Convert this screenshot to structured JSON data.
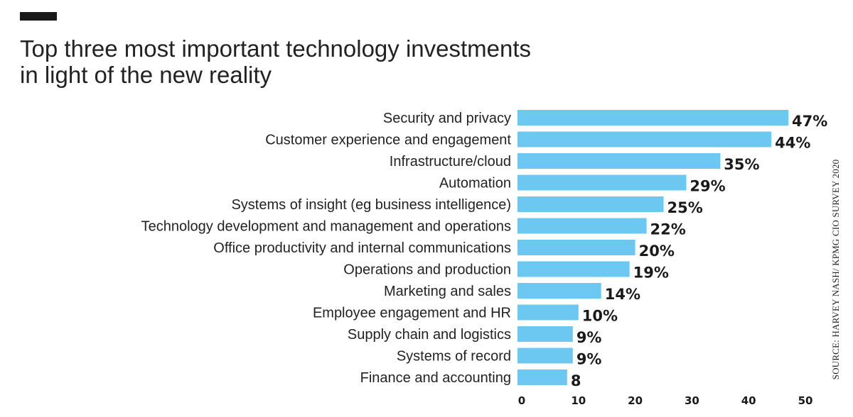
{
  "header": {
    "title_line1": "Top three most important technology investments",
    "title_line2": "in light of the new reality"
  },
  "source": "SOURCE: HARVEY NASH/ KPMG CIO SURVEY 2020",
  "colors": {
    "bar": "#6cc8f0",
    "text": "#222222",
    "accent_bar": "#1a1a1a"
  },
  "chart_data": {
    "type": "bar",
    "orientation": "horizontal",
    "title": "Top three most important technology investments in light of the new reality",
    "categories": [
      "Security and privacy",
      "Customer experience and engagement",
      "Infrastructure/cloud",
      "Automation",
      "Systems of insight (eg business intelligence)",
      "Technology development and management and operations",
      "Office productivity and internal communications",
      "Operations and production",
      "Marketing and sales",
      "Employee engagement and HR",
      "Supply chain and logistics",
      "Systems of record",
      "Finance and accounting"
    ],
    "values": [
      47,
      44,
      35,
      29,
      25,
      22,
      20,
      19,
      14,
      10,
      9,
      9,
      8
    ],
    "value_labels": [
      "47%",
      "44%",
      "35%",
      "29%",
      "25%",
      "22%",
      "20%",
      "19%",
      "14%",
      "10%",
      "9%",
      "9%",
      "8"
    ],
    "xlim": [
      0,
      50
    ],
    "xticks": [
      "0",
      "10",
      "20",
      "30",
      "40",
      "50"
    ],
    "xlabel": "",
    "ylabel": "",
    "grid": false,
    "legend": "none"
  }
}
